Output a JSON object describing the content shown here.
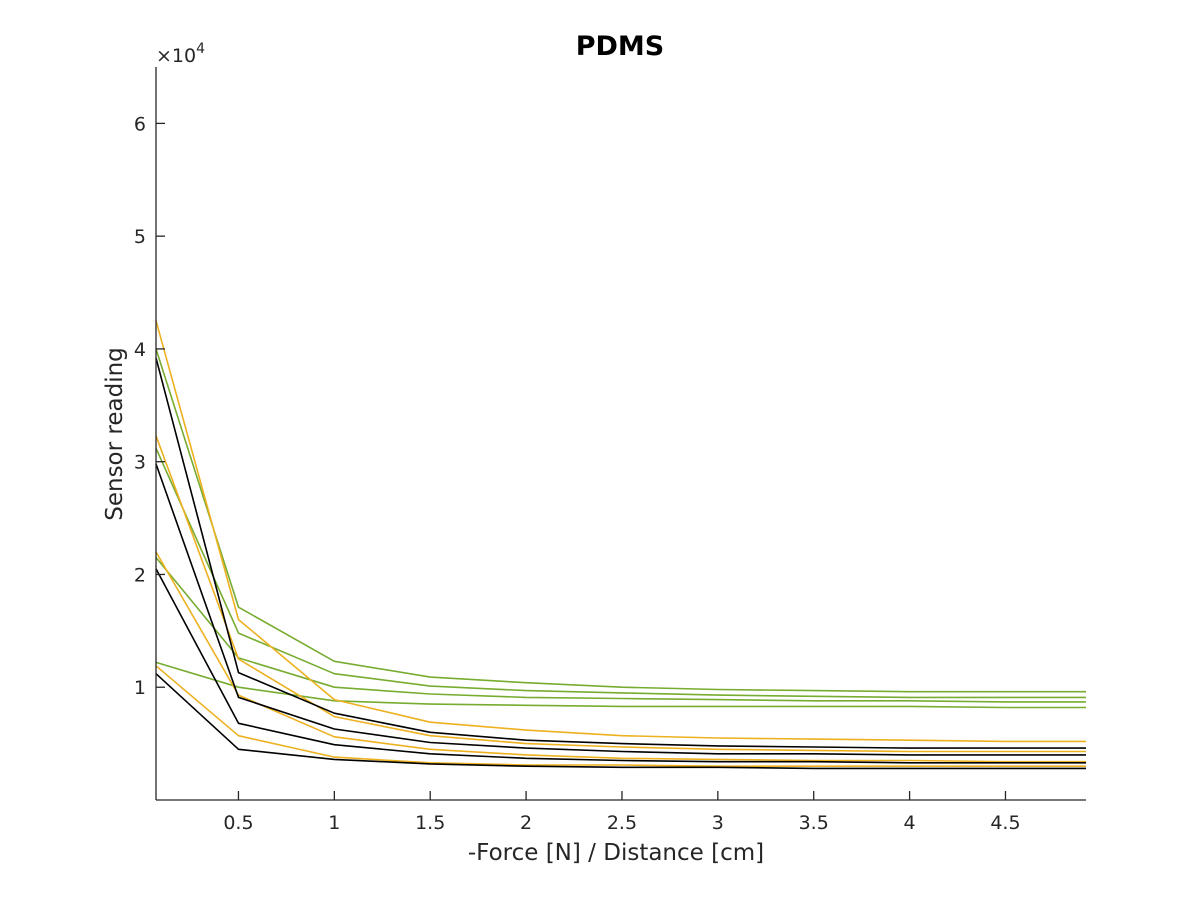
{
  "chart_data": {
    "type": "line",
    "title": "PDMS",
    "xlabel": "-Force [N] / Distance [cm]",
    "ylabel": "Sensor reading",
    "y_multiplier_label": "×10",
    "y_multiplier_exponent": "4",
    "xlim": [
      0.07,
      4.92
    ],
    "ylim": [
      0,
      6.5
    ],
    "y_scale_factor": 10000,
    "xticks": [
      0.5,
      1,
      1.5,
      2,
      2.5,
      3,
      3.5,
      4,
      4.5
    ],
    "xtick_labels": [
      "0.5",
      "1",
      "1.5",
      "2",
      "2.5",
      "3",
      "3.5",
      "4",
      "4.5"
    ],
    "yticks": [
      1,
      2,
      3,
      4,
      5,
      6
    ],
    "ytick_labels": [
      "1",
      "2",
      "3",
      "4",
      "5",
      "6"
    ],
    "grid": false,
    "legend": "none",
    "x": [
      0.07,
      0.5,
      1,
      1.5,
      2,
      2.5,
      3,
      3.5,
      4,
      4.5,
      4.92
    ],
    "series": [
      {
        "color": "#77ac30",
        "values": [
          4.0,
          1.71,
          1.23,
          1.09,
          1.04,
          1.0,
          0.98,
          0.97,
          0.96,
          0.96,
          0.96
        ]
      },
      {
        "color": "#77ac30",
        "values": [
          3.12,
          1.48,
          1.12,
          1.01,
          0.97,
          0.95,
          0.93,
          0.92,
          0.91,
          0.91,
          0.91
        ]
      },
      {
        "color": "#77ac30",
        "values": [
          2.15,
          1.26,
          1.0,
          0.94,
          0.91,
          0.9,
          0.89,
          0.88,
          0.88,
          0.87,
          0.87
        ]
      },
      {
        "color": "#77ac30",
        "values": [
          1.22,
          1.0,
          0.88,
          0.85,
          0.84,
          0.83,
          0.83,
          0.83,
          0.83,
          0.82,
          0.82
        ]
      },
      {
        "color": "#edb120",
        "values": [
          4.25,
          1.6,
          0.89,
          0.69,
          0.62,
          0.57,
          0.55,
          0.54,
          0.53,
          0.52,
          0.52
        ]
      },
      {
        "color": "#edb120",
        "values": [
          3.23,
          1.25,
          0.74,
          0.57,
          0.5,
          0.47,
          0.45,
          0.44,
          0.43,
          0.43,
          0.43
        ]
      },
      {
        "color": "#edb120",
        "values": [
          2.2,
          0.93,
          0.56,
          0.45,
          0.4,
          0.37,
          0.36,
          0.35,
          0.35,
          0.34,
          0.34
        ]
      },
      {
        "color": "#edb120",
        "values": [
          1.19,
          0.57,
          0.38,
          0.33,
          0.31,
          0.31,
          0.3,
          0.3,
          0.3,
          0.3,
          0.3
        ]
      },
      {
        "color": "#000000",
        "values": [
          3.92,
          1.13,
          0.77,
          0.6,
          0.53,
          0.5,
          0.48,
          0.47,
          0.46,
          0.46,
          0.46
        ]
      },
      {
        "color": "#000000",
        "values": [
          2.98,
          0.91,
          0.63,
          0.51,
          0.46,
          0.43,
          0.41,
          0.41,
          0.4,
          0.4,
          0.4
        ]
      },
      {
        "color": "#000000",
        "values": [
          2.05,
          0.68,
          0.49,
          0.41,
          0.37,
          0.35,
          0.34,
          0.34,
          0.33,
          0.33,
          0.33
        ]
      },
      {
        "color": "#000000",
        "values": [
          1.12,
          0.45,
          0.36,
          0.32,
          0.3,
          0.29,
          0.29,
          0.28,
          0.28,
          0.28,
          0.28
        ]
      }
    ]
  }
}
